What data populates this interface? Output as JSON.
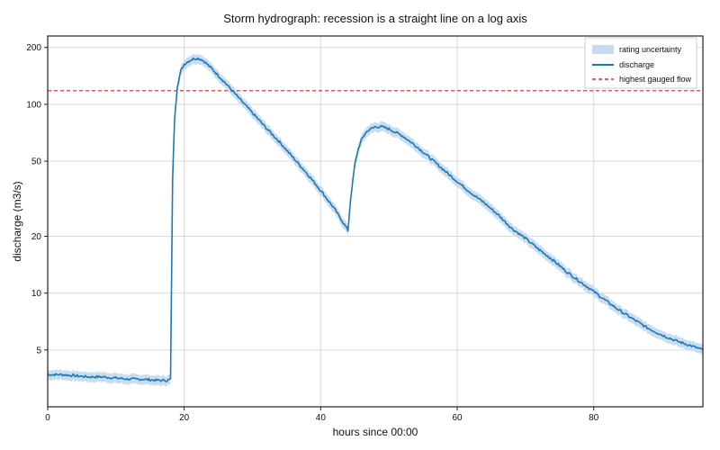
{
  "chart_data": {
    "type": "line",
    "title": "Storm hydrograph: recession is a straight line on a log axis",
    "xlabel": "hours since 00:00",
    "ylabel": "discharge (m3/s)",
    "xlim": [
      0,
      96
    ],
    "ylim": [
      2.5,
      230
    ],
    "yscale": "log",
    "grid": true,
    "legend_position": "top-right",
    "x_ticks": [
      0,
      20,
      40,
      60,
      80
    ],
    "y_ticks": [
      5,
      10,
      20,
      50,
      100,
      200
    ],
    "series": [
      {
        "name": "discharge",
        "color": "#1f77b4",
        "x": [
          0,
          2,
          4,
          6,
          8,
          10,
          12,
          14,
          16,
          17.5,
          18,
          18.3,
          18.6,
          19,
          19.5,
          20,
          20.5,
          21,
          21.5,
          22,
          22.5,
          23,
          24,
          26,
          28,
          30,
          32,
          34,
          36,
          38,
          40,
          42,
          43.5,
          44,
          44.4,
          45,
          45.5,
          46,
          46.5,
          47,
          48,
          49,
          50,
          52,
          54,
          56,
          58,
          60,
          62,
          64,
          66,
          68,
          70,
          72,
          74,
          76,
          78,
          80,
          82,
          84,
          86,
          88,
          90,
          92,
          94,
          96
        ],
        "y": [
          3.7,
          3.7,
          3.65,
          3.6,
          3.6,
          3.55,
          3.5,
          3.5,
          3.45,
          3.45,
          3.5,
          40,
          85,
          125,
          150,
          163,
          168,
          172,
          175,
          175,
          173,
          168,
          155,
          130,
          108,
          90,
          75,
          63,
          52,
          43,
          35,
          28,
          23,
          21.5,
          32,
          48,
          58,
          65,
          70,
          73,
          76,
          76,
          74,
          68,
          60,
          52,
          45,
          39,
          34,
          30,
          26,
          22,
          19.5,
          17,
          15,
          13,
          11.5,
          10.2,
          9,
          8,
          7.2,
          6.5,
          6,
          5.6,
          5.3,
          5
        ]
      }
    ],
    "uncertainty_band": {
      "name": "rating uncertainty",
      "color": "#c6dbef",
      "relative_halfwidth": 0.06
    },
    "reference_lines": [
      {
        "name": "highest gauged flow",
        "orientation": "horizontal",
        "value": 118,
        "color": "#d62728",
        "style": "dashed"
      }
    ]
  }
}
